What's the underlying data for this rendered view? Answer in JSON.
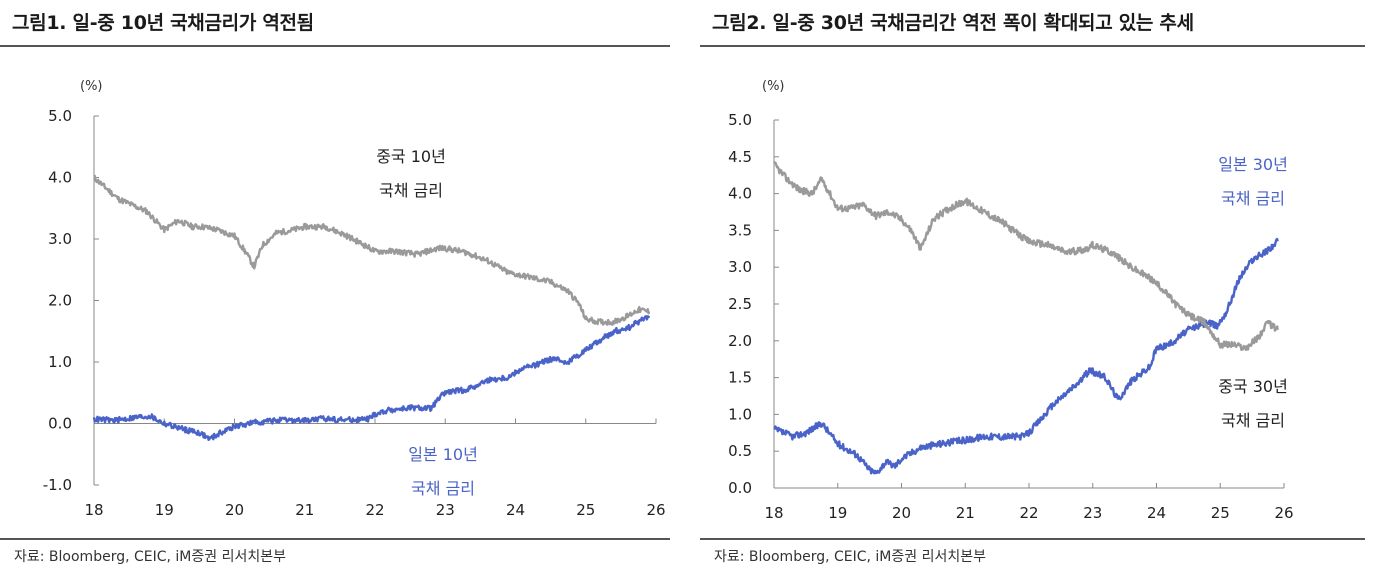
{
  "chart_data": [
    {
      "type": "line",
      "title": "그림1.  일-중 10년 국채금리가 역전됨",
      "unit_label": "(%)",
      "x_ticks": [
        "18",
        "19",
        "20",
        "21",
        "22",
        "23",
        "24",
        "25",
        "26"
      ],
      "xlim": [
        2018,
        2026
      ],
      "ylim": [
        -1.0,
        5.0
      ],
      "y_ticks": [
        "5.0",
        "4.0",
        "3.0",
        "2.0",
        "1.0",
        "0.0",
        "-1.0"
      ],
      "source": "자료: Bloomberg, CEIC, iM증권 리서치본부",
      "series": [
        {
          "name": "중국 10년 국채 금리",
          "label_lines": [
            "중국 10년",
            "국채 금리"
          ],
          "color": "#9a9a9a",
          "x": [
            2018.0,
            2018.15,
            2018.35,
            2018.55,
            2018.75,
            2019.0,
            2019.2,
            2019.4,
            2019.55,
            2019.75,
            2020.0,
            2020.15,
            2020.28,
            2020.4,
            2020.6,
            2020.85,
            2021.0,
            2021.3,
            2021.6,
            2021.85,
            2022.0,
            2022.3,
            2022.6,
            2022.9,
            2023.0,
            2023.3,
            2023.6,
            2023.9,
            2024.2,
            2024.5,
            2024.75,
            2024.9,
            2025.0,
            2025.2,
            2025.4,
            2025.6,
            2025.75,
            2025.9
          ],
          "y": [
            4.0,
            3.85,
            3.65,
            3.55,
            3.45,
            3.15,
            3.3,
            3.2,
            3.2,
            3.15,
            3.05,
            2.8,
            2.55,
            2.9,
            3.1,
            3.15,
            3.2,
            3.2,
            3.05,
            2.9,
            2.8,
            2.8,
            2.75,
            2.85,
            2.85,
            2.78,
            2.65,
            2.45,
            2.38,
            2.3,
            2.15,
            1.95,
            1.7,
            1.65,
            1.65,
            1.75,
            1.85,
            1.82
          ]
        },
        {
          "name": "일본 10년 국채 금리",
          "label_lines": [
            "일본 10년",
            "국채 금리"
          ],
          "color": "#4a63c8",
          "x": [
            2018.0,
            2018.3,
            2018.6,
            2018.8,
            2019.0,
            2019.3,
            2019.5,
            2019.65,
            2019.8,
            2020.0,
            2020.3,
            2020.6,
            2021.0,
            2021.3,
            2021.6,
            2021.9,
            2022.0,
            2022.2,
            2022.5,
            2022.8,
            2022.95,
            2023.0,
            2023.3,
            2023.6,
            2023.9,
            2024.1,
            2024.3,
            2024.5,
            2024.75,
            2025.0,
            2025.2,
            2025.4,
            2025.6,
            2025.75,
            2025.9
          ],
          "y": [
            0.07,
            0.05,
            0.1,
            0.12,
            0.0,
            -0.1,
            -0.15,
            -0.25,
            -0.15,
            -0.05,
            0.02,
            0.05,
            0.05,
            0.08,
            0.06,
            0.07,
            0.15,
            0.22,
            0.25,
            0.25,
            0.45,
            0.5,
            0.55,
            0.7,
            0.75,
            0.9,
            0.95,
            1.05,
            1.0,
            1.2,
            1.35,
            1.5,
            1.55,
            1.65,
            1.75
          ]
        }
      ]
    },
    {
      "type": "line",
      "title": "그림2.  일-중 30년 국채금리간 역전 폭이 확대되고 있는 추세",
      "unit_label": "(%)",
      "x_ticks": [
        "18",
        "19",
        "20",
        "21",
        "22",
        "23",
        "24",
        "25",
        "26"
      ],
      "xlim": [
        2018,
        2026
      ],
      "ylim": [
        0.0,
        5.0
      ],
      "y_ticks": [
        "5.0",
        "4.5",
        "4.0",
        "3.5",
        "3.0",
        "2.5",
        "2.0",
        "1.5",
        "1.0",
        "0.5",
        "0.0"
      ],
      "source": "자료: Bloomberg, CEIC, iM증권 리서치본부",
      "series": [
        {
          "name": "일본 30년 국채 금리",
          "label_lines": [
            "일본 30년",
            "국채 금리"
          ],
          "color": "#4a63c8",
          "x": [
            2018.0,
            2018.3,
            2018.5,
            2018.75,
            2019.0,
            2019.3,
            2019.5,
            2019.6,
            2019.75,
            2019.9,
            2020.0,
            2020.3,
            2020.6,
            2021.0,
            2021.3,
            2021.6,
            2021.9,
            2022.0,
            2022.2,
            2022.4,
            2022.6,
            2022.8,
            2022.95,
            2023.2,
            2023.4,
            2023.6,
            2023.9,
            2024.0,
            2024.2,
            2024.5,
            2024.8,
            2024.95,
            2025.1,
            2025.3,
            2025.5,
            2025.7,
            2025.9
          ],
          "y": [
            0.8,
            0.7,
            0.75,
            0.88,
            0.6,
            0.45,
            0.25,
            0.2,
            0.35,
            0.3,
            0.4,
            0.55,
            0.6,
            0.65,
            0.7,
            0.7,
            0.7,
            0.75,
            0.95,
            1.15,
            1.3,
            1.45,
            1.6,
            1.5,
            1.2,
            1.45,
            1.65,
            1.9,
            1.95,
            2.15,
            2.25,
            2.2,
            2.4,
            2.85,
            3.1,
            3.2,
            3.35
          ]
        },
        {
          "name": "중국 30년 국채 금리",
          "label_lines": [
            "중국 30년",
            "국채 금리"
          ],
          "color": "#9a9a9a",
          "x": [
            2018.0,
            2018.2,
            2018.4,
            2018.6,
            2018.75,
            2019.0,
            2019.2,
            2019.4,
            2019.6,
            2019.8,
            2020.0,
            2020.15,
            2020.3,
            2020.5,
            2020.75,
            2021.0,
            2021.3,
            2021.6,
            2021.9,
            2022.0,
            2022.3,
            2022.6,
            2022.9,
            2023.0,
            2023.3,
            2023.6,
            2023.9,
            2024.1,
            2024.3,
            2024.5,
            2024.75,
            2025.0,
            2025.2,
            2025.4,
            2025.6,
            2025.75,
            2025.9
          ],
          "y": [
            4.4,
            4.2,
            4.05,
            4.0,
            4.2,
            3.8,
            3.8,
            3.85,
            3.7,
            3.75,
            3.65,
            3.5,
            3.25,
            3.65,
            3.8,
            3.9,
            3.75,
            3.6,
            3.4,
            3.35,
            3.3,
            3.2,
            3.25,
            3.3,
            3.2,
            3.0,
            2.85,
            2.7,
            2.5,
            2.35,
            2.25,
            1.95,
            1.95,
            1.9,
            2.05,
            2.25,
            2.15
          ]
        }
      ]
    }
  ]
}
